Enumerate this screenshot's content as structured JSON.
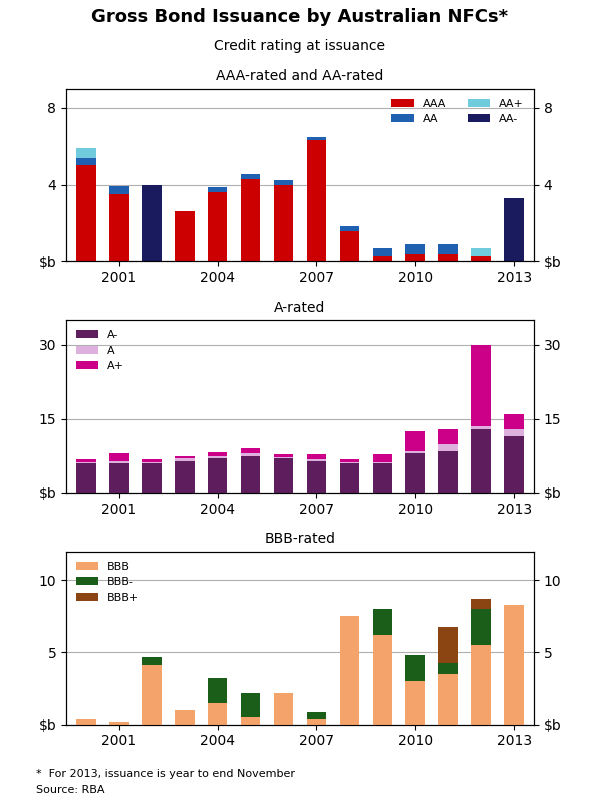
{
  "title": "Gross Bond Issuance by Australian NFCs*",
  "subtitle": "Credit rating at issuance",
  "annotations": [
    "*  For 2013, issuance is year to end November",
    "Source: RBA"
  ],
  "chart_data": [
    {
      "type": "bar",
      "stacked": true,
      "title": "AAA-rated and AA-rated",
      "categories": [
        null,
        "2001",
        null,
        null,
        "2004",
        null,
        null,
        "2007",
        null,
        null,
        "2010",
        null,
        null,
        "2013"
      ],
      "series": [
        {
          "name": "AAA",
          "color": "#cc0000",
          "values": [
            5.0,
            3.5,
            0.0,
            2.6,
            3.6,
            4.3,
            4.0,
            6.3,
            1.6,
            0.3,
            0.4,
            0.4,
            0.3,
            0.0
          ]
        },
        {
          "name": "AA",
          "color": "#2060b0",
          "values": [
            0.4,
            0.4,
            0.0,
            0.0,
            0.25,
            0.25,
            0.25,
            0.2,
            0.25,
            0.4,
            0.5,
            0.5,
            0.0,
            0.0
          ]
        },
        {
          "name": "AA+",
          "color": "#70ccdd",
          "values": [
            0.5,
            0.0,
            0.0,
            0.0,
            0.0,
            0.0,
            0.0,
            0.0,
            0.0,
            0.0,
            0.0,
            0.0,
            0.4,
            0.0
          ]
        },
        {
          "name": "AA-",
          "color": "#1a1a5e",
          "values": [
            0.0,
            0.0,
            4.0,
            0.0,
            0.0,
            0.0,
            0.0,
            0.0,
            0.0,
            0.0,
            0.0,
            0.0,
            0.0,
            3.3
          ]
        }
      ],
      "ylim": [
        0,
        9
      ],
      "yticks": [
        {
          "value": 0,
          "label": "$b"
        },
        4,
        8
      ],
      "y2lim": [
        0,
        9
      ],
      "y2ticks": [
        {
          "value": 0,
          "label": "$b"
        },
        4,
        8
      ],
      "grid": true,
      "legend": "upper right"
    },
    {
      "type": "bar",
      "stacked": true,
      "title": "A-rated",
      "categories": [
        null,
        "2001",
        null,
        null,
        "2004",
        null,
        null,
        "2007",
        null,
        null,
        "2010",
        null,
        null,
        "2013"
      ],
      "series": [
        {
          "name": "A-",
          "color": "#5e1e5e",
          "values": [
            6.0,
            6.0,
            6.0,
            6.5,
            7.0,
            7.5,
            7.0,
            6.5,
            6.0,
            6.0,
            8.0,
            8.5,
            13.0,
            11.5
          ]
        },
        {
          "name": "A",
          "color": "#ddb0dd",
          "values": [
            0.3,
            0.5,
            0.3,
            0.5,
            0.5,
            0.5,
            0.3,
            0.3,
            0.3,
            0.3,
            0.5,
            1.5,
            0.5,
            1.5
          ]
        },
        {
          "name": "A+",
          "color": "#cc0088",
          "values": [
            0.5,
            1.5,
            0.5,
            0.5,
            0.8,
            1.0,
            0.5,
            1.0,
            0.5,
            1.5,
            4.0,
            3.0,
            16.5,
            3.0
          ]
        }
      ],
      "ylim": [
        0,
        35
      ],
      "yticks": [
        {
          "value": 0,
          "label": "$b"
        },
        15,
        30
      ],
      "y2lim": [
        0,
        35
      ],
      "y2ticks": [
        {
          "value": 0,
          "label": "$b"
        },
        15,
        30
      ],
      "grid": true,
      "legend": "upper left"
    },
    {
      "type": "bar",
      "stacked": true,
      "title": "BBB-rated",
      "categories": [
        null,
        "2001",
        null,
        null,
        "2004",
        null,
        null,
        "2007",
        null,
        null,
        "2010",
        null,
        null,
        "2013"
      ],
      "series": [
        {
          "name": "BBB",
          "color": "#f4a46a",
          "values": [
            0.4,
            0.2,
            4.1,
            1.0,
            1.5,
            0.5,
            2.2,
            0.4,
            7.5,
            6.2,
            3.0,
            3.5,
            5.5,
            8.3
          ]
        },
        {
          "name": "BBB-",
          "color": "#1a5e1a",
          "values": [
            0.0,
            0.0,
            0.6,
            0.0,
            1.7,
            1.7,
            0.0,
            0.5,
            0.0,
            1.8,
            1.8,
            0.8,
            2.5,
            0.0
          ]
        },
        {
          "name": "BBB+",
          "color": "#8b4513",
          "values": [
            0.0,
            0.0,
            0.0,
            0.0,
            0.0,
            0.0,
            0.0,
            0.0,
            0.0,
            0.0,
            0.0,
            2.5,
            0.7,
            0.0
          ]
        }
      ],
      "ylim": [
        0,
        12
      ],
      "yticks": [
        {
          "value": 0,
          "label": "$b"
        },
        5,
        10
      ],
      "y2lim": [
        0,
        12
      ],
      "y2ticks": [
        {
          "value": 0,
          "label": "$b"
        },
        5,
        10
      ],
      "grid": true,
      "legend": "upper left"
    }
  ]
}
